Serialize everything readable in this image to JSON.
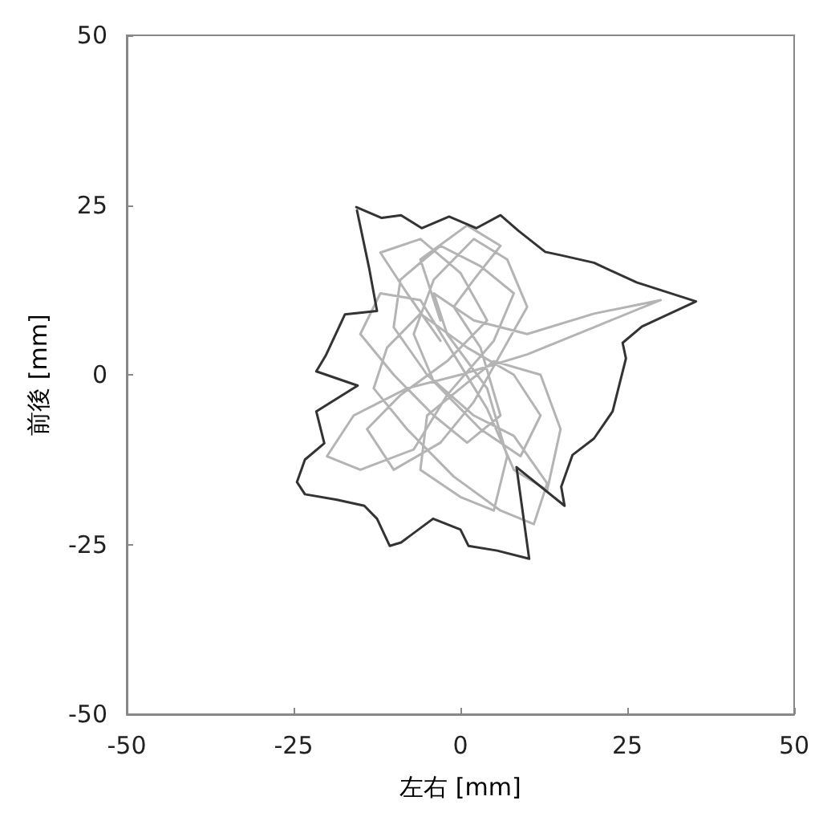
{
  "chart_data": {
    "type": "line",
    "xlabel": "左右 [mm]",
    "ylabel": "前後 [mm]",
    "xlim": [
      -50,
      50
    ],
    "ylim": [
      -50,
      50
    ],
    "xticks": [
      -50,
      -25,
      0,
      25,
      50
    ],
    "yticks": [
      -50,
      -25,
      0,
      25,
      50
    ],
    "grid": false,
    "marker": "none",
    "line_style": "solid",
    "series": [
      {
        "color": "#b4b4b4",
        "x": [
          -3,
          -8,
          -12,
          -6,
          0,
          4,
          -2,
          -9,
          -14,
          -10,
          -3,
          2,
          6,
          10,
          7,
          2,
          -4,
          -7,
          -4,
          3,
          9,
          12,
          8,
          1,
          -6,
          -11,
          -13,
          -8,
          -1,
          6,
          11,
          13,
          8,
          2,
          -5,
          -10,
          -9,
          -3,
          3,
          8,
          5,
          -2,
          -7,
          -15,
          -20,
          -16,
          -8,
          0,
          10,
          20,
          30,
          20,
          10,
          2,
          -4,
          -2,
          4,
          7,
          5,
          0,
          -6,
          -5,
          0,
          5,
          12,
          15,
          13,
          8,
          4,
          -1,
          -6,
          -12,
          -15,
          -10,
          -4,
          1,
          6,
          3,
          -1,
          2,
          6,
          1,
          -6,
          -3
        ],
        "values": [
          5,
          12,
          18,
          20,
          15,
          8,
          2,
          -3,
          -8,
          -14,
          -10,
          -4,
          3,
          10,
          17,
          20,
          14,
          6,
          -1,
          -8,
          -12,
          -6,
          0,
          4,
          9,
          4,
          -2,
          -8,
          -15,
          -20,
          -22,
          -16,
          -9,
          -6,
          0,
          7,
          14,
          19,
          16,
          12,
          5,
          -3,
          -11,
          -14,
          -12,
          -6,
          -2,
          0,
          3,
          7,
          11,
          9,
          6,
          8,
          12,
          6,
          -2,
          -12,
          -20,
          -18,
          -14,
          -6,
          -2,
          2,
          0,
          -8,
          -17,
          -14,
          -5,
          3,
          11,
          12,
          6,
          0,
          -6,
          -10,
          -6,
          4,
          10,
          14,
          19,
          22,
          17,
          8
        ]
      },
      {
        "color": "#333333",
        "x": [
          -15.6,
          -11.8,
          -8.9,
          -5.8,
          -1.7,
          2.4,
          6.0,
          8.7,
          12.7,
          15.1,
          20.0,
          26.4,
          35.3,
          27.2,
          24.3,
          24.8,
          22.8,
          20.0,
          16.8,
          15.1,
          15.6,
          8.4,
          10.3,
          5.5,
          1.2,
          0,
          -4.1,
          -8.9,
          -10.6,
          -12.5,
          -14.4,
          -18.5,
          -23.3,
          -24.5,
          -23.3,
          -20.4,
          -21.6,
          -15.4,
          -21.6,
          -20.2,
          -17.3,
          -12.5,
          -13.7,
          -15.5
        ],
        "values": [
          24.7,
          23.1,
          23.5,
          21.6,
          23.3,
          21.6,
          23.5,
          21.2,
          18.1,
          17.6,
          16.5,
          13.6,
          10.8,
          7.1,
          4.7,
          2.4,
          -5.4,
          -9.4,
          -11.8,
          -16.5,
          -19.3,
          -13.6,
          -27.1,
          -25.9,
          -25.2,
          -22.8,
          -21.2,
          -24.7,
          -25.2,
          -21.2,
          -19.3,
          -18.4,
          -17.6,
          -15.8,
          -12.5,
          -10.1,
          -5.4,
          -1.6,
          0.5,
          2.8,
          8.9,
          9.4,
          15.8,
          24.2
        ]
      }
    ]
  }
}
